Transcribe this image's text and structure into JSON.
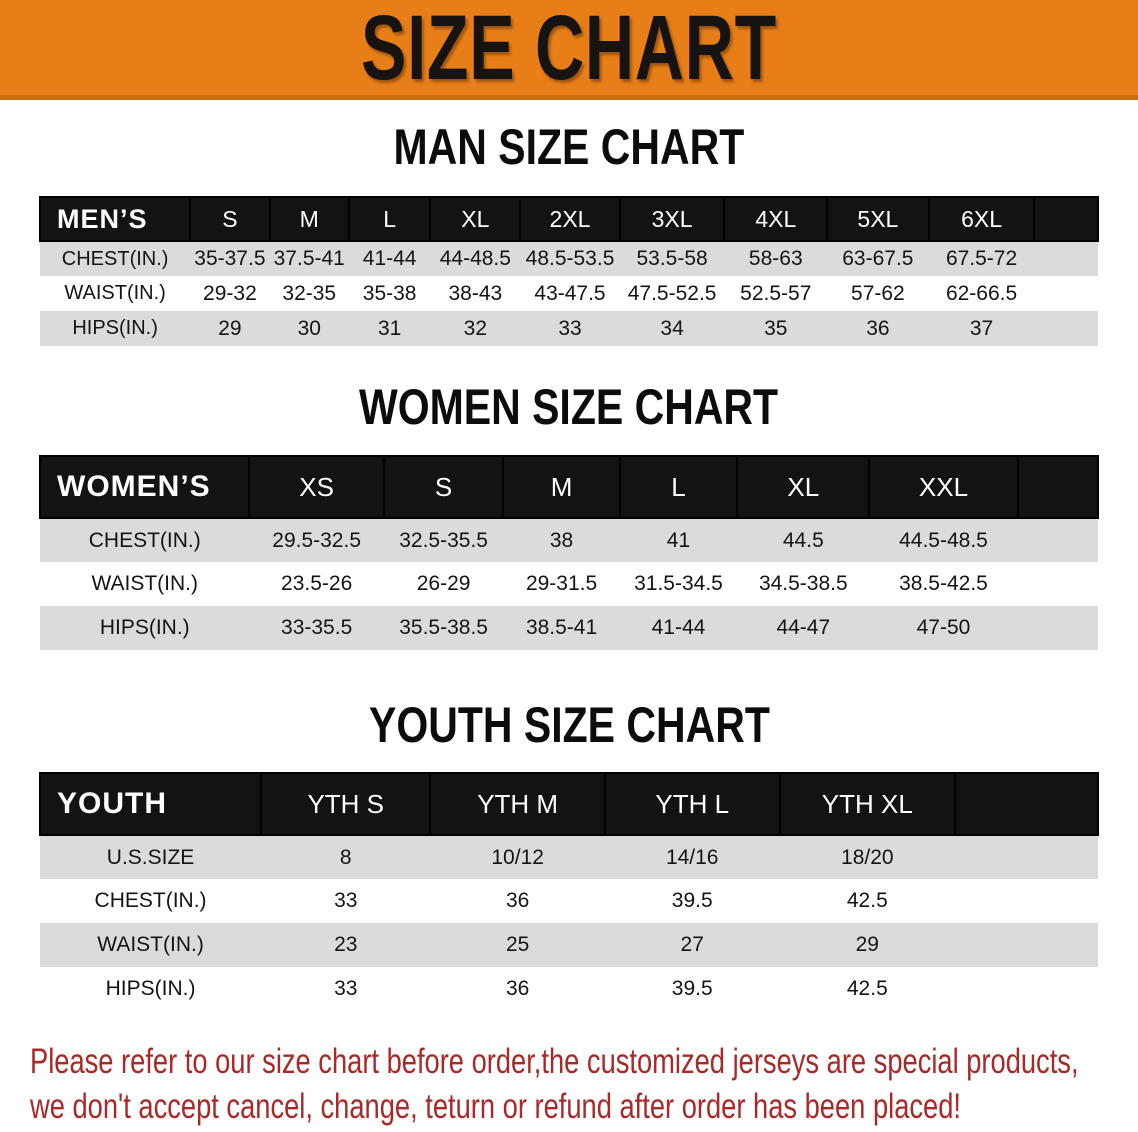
{
  "banner": {
    "title": "SIZE CHART"
  },
  "sections": [
    {
      "title": "MAN SIZE CHART",
      "header_label": "MEN’S",
      "columns": [
        "S",
        "M",
        "L",
        "XL",
        "2XL",
        "3XL",
        "4XL",
        "5XL",
        "6XL"
      ],
      "rows": [
        {
          "label": "CHEST(IN.)",
          "values": [
            "35-37.5",
            "37.5-41",
            "41-44",
            "44-48.5",
            "48.5-53.5",
            "53.5-58",
            "58-63",
            "63-67.5",
            "67.5-72"
          ]
        },
        {
          "label": "WAIST(IN.)",
          "values": [
            "29-32",
            "32-35",
            "35-38",
            "38-43",
            "43-47.5",
            "47.5-52.5",
            "52.5-57",
            "57-62",
            "62-66.5"
          ]
        },
        {
          "label": "HIPS(IN.)",
          "values": [
            "29",
            "30",
            "31",
            "32",
            "33",
            "34",
            "35",
            "36",
            "37"
          ]
        }
      ]
    },
    {
      "title": "WOMEN SIZE CHART",
      "header_label": "WOMEN’S",
      "columns": [
        "XS",
        "S",
        "M",
        "L",
        "XL",
        "XXL"
      ],
      "rows": [
        {
          "label": "CHEST(IN.)",
          "values": [
            "29.5-32.5",
            "32.5-35.5",
            "38",
            "41",
            "44.5",
            "44.5-48.5"
          ]
        },
        {
          "label": "WAIST(IN.)",
          "values": [
            "23.5-26",
            "26-29",
            "29-31.5",
            "31.5-34.5",
            "34.5-38.5",
            "38.5-42.5"
          ]
        },
        {
          "label": "HIPS(IN.)",
          "values": [
            "33-35.5",
            "35.5-38.5",
            "38.5-41",
            "41-44",
            "44-47",
            "47-50"
          ]
        }
      ]
    },
    {
      "title": "YOUTH SIZE CHART",
      "header_label": "YOUTH",
      "columns": [
        "YTH S",
        "YTH M",
        "YTH L",
        "YTH XL"
      ],
      "rows": [
        {
          "label": "U.S.SIZE",
          "values": [
            "8",
            "10/12",
            "14/16",
            "18/20"
          ]
        },
        {
          "label": "CHEST(IN.)",
          "values": [
            "33",
            "36",
            "39.5",
            "42.5"
          ]
        },
        {
          "label": "WAIST(IN.)",
          "values": [
            "23",
            "25",
            "27",
            "29"
          ]
        },
        {
          "label": "HIPS(IN.)",
          "values": [
            "33",
            "36",
            "39.5",
            "42.5"
          ]
        }
      ]
    }
  ],
  "disclaimer": {
    "line1": "Please refer to our size chart before order,the customized jerseys are special products,",
    "line2": "we don't accept cancel, change, teturn or refund after order has been placed!"
  },
  "colors": {
    "banner_orange": "#E87E17",
    "banner_edge": "#C86E10",
    "header_black": "#131313",
    "row_gray": "#DBDBDB",
    "disclaimer_red": "#A92828"
  }
}
